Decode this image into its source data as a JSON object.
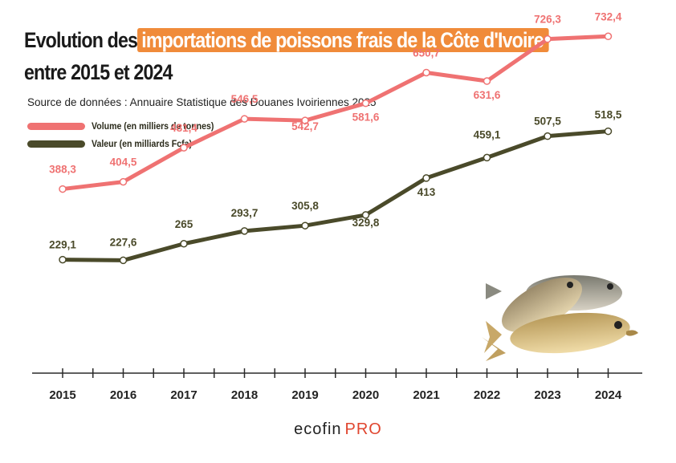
{
  "title": {
    "part1": "Evolution des",
    "highlight": "importations de poissons frais  de la Côte d'Ivoire",
    "line2": "entre 2015 et 2024"
  },
  "source": "Source de données : Annuaire Statistique des Douanes Ivoiriennes 2025",
  "brand": {
    "name": "ecofin",
    "suffix": "PRO"
  },
  "colors": {
    "volume": "#ef7272",
    "valeur": "#4a4a2a",
    "highlight": "#f08b3a",
    "axis": "#2a2a2a"
  },
  "chart_data": {
    "type": "line",
    "categories": [
      "2015",
      "2016",
      "2017",
      "2018",
      "2019",
      "2020",
      "2021",
      "2022",
      "2023",
      "2024"
    ],
    "series": [
      {
        "name": "Volume (en milliers de tonnes)",
        "values": [
          388.3,
          404.5,
          481.4,
          546.5,
          542.7,
          581.6,
          650.7,
          631.6,
          726.3,
          732.4
        ],
        "labels": [
          "388,3",
          "404,5",
          "481,4",
          "546,5",
          "542,7",
          "581,6",
          "650,7",
          "631,6",
          "726,3",
          "732,4"
        ]
      },
      {
        "name": "Valeur (en milliards Fcfa)",
        "values": [
          229.1,
          227.6,
          265,
          293.7,
          305.8,
          329.8,
          413,
          459.1,
          507.5,
          518.5
        ],
        "labels": [
          "229,1",
          "227,6",
          "265",
          "293,7",
          "305,8",
          "329,8",
          "413",
          "459,1",
          "507,5",
          "518,5"
        ]
      }
    ],
    "grid": false,
    "legend": "top-left"
  }
}
